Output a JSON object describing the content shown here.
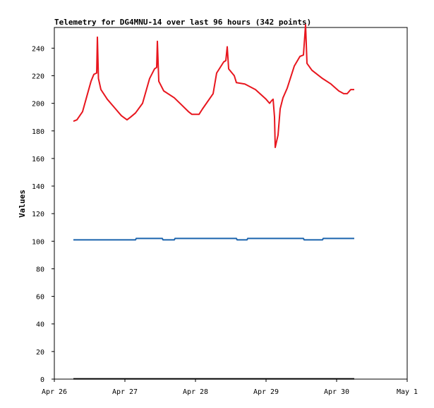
{
  "chart_data": {
    "type": "line",
    "title": "Telemetry for DG4MNU-14 over last 96 hours (342 points)",
    "xlabel": "",
    "ylabel": "Values",
    "xlim": [
      0,
      5
    ],
    "ylim": [
      0,
      255
    ],
    "xticks": [
      {
        "x": 0,
        "label": "Apr 26"
      },
      {
        "x": 1,
        "label": "Apr 27"
      },
      {
        "x": 2,
        "label": "Apr 28"
      },
      {
        "x": 3,
        "label": "Apr 29"
      },
      {
        "x": 4,
        "label": "Apr 30"
      },
      {
        "x": 5,
        "label": "May 1"
      }
    ],
    "yticks": [
      0,
      20,
      40,
      60,
      80,
      100,
      120,
      140,
      160,
      180,
      200,
      220,
      240
    ],
    "grid": false,
    "legend": "none",
    "series": [
      {
        "color": "#e8161e",
        "points": [
          [
            0.27,
            187
          ],
          [
            0.32,
            188
          ],
          [
            0.4,
            194
          ],
          [
            0.46,
            205
          ],
          [
            0.52,
            216
          ],
          [
            0.56,
            221
          ],
          [
            0.6,
            222
          ],
          [
            0.61,
            248
          ],
          [
            0.625,
            218
          ],
          [
            0.66,
            210
          ],
          [
            0.75,
            203
          ],
          [
            0.85,
            197
          ],
          [
            0.95,
            191
          ],
          [
            1.03,
            188
          ],
          [
            1.08,
            190
          ],
          [
            1.15,
            193
          ],
          [
            1.25,
            200
          ],
          [
            1.35,
            218
          ],
          [
            1.42,
            225
          ],
          [
            1.45,
            226
          ],
          [
            1.46,
            245
          ],
          [
            1.48,
            216
          ],
          [
            1.55,
            209
          ],
          [
            1.7,
            204
          ],
          [
            1.9,
            194
          ],
          [
            1.95,
            192
          ],
          [
            2.05,
            192
          ],
          [
            2.1,
            196
          ],
          [
            2.25,
            207
          ],
          [
            2.3,
            222
          ],
          [
            2.4,
            230
          ],
          [
            2.43,
            231
          ],
          [
            2.45,
            241
          ],
          [
            2.47,
            225
          ],
          [
            2.55,
            220
          ],
          [
            2.58,
            215
          ],
          [
            2.7,
            214
          ],
          [
            2.85,
            210
          ],
          [
            3.0,
            203
          ],
          [
            3.05,
            200
          ],
          [
            3.08,
            202
          ],
          [
            3.1,
            203
          ],
          [
            3.12,
            190
          ],
          [
            3.13,
            168
          ],
          [
            3.17,
            177
          ],
          [
            3.2,
            196
          ],
          [
            3.24,
            204
          ],
          [
            3.3,
            211
          ],
          [
            3.4,
            227
          ],
          [
            3.48,
            234
          ],
          [
            3.53,
            235
          ],
          [
            3.56,
            257
          ],
          [
            3.58,
            229
          ],
          [
            3.65,
            224
          ],
          [
            3.8,
            218
          ],
          [
            3.92,
            214
          ],
          [
            4.03,
            209
          ],
          [
            4.1,
            207
          ],
          [
            4.15,
            207
          ],
          [
            4.2,
            210
          ],
          [
            4.25,
            210
          ]
        ]
      },
      {
        "color": "#1b63ad",
        "points": [
          [
            0.27,
            101
          ],
          [
            1.15,
            101
          ],
          [
            1.16,
            102
          ],
          [
            1.53,
            102
          ],
          [
            1.54,
            101
          ],
          [
            1.7,
            101
          ],
          [
            1.71,
            102
          ],
          [
            2.58,
            102
          ],
          [
            2.59,
            101
          ],
          [
            2.73,
            101
          ],
          [
            2.74,
            102
          ],
          [
            3.53,
            102
          ],
          [
            3.54,
            101
          ],
          [
            3.8,
            101
          ],
          [
            3.81,
            102
          ],
          [
            4.25,
            102
          ]
        ]
      },
      {
        "color": "#000000",
        "points": [
          [
            0.27,
            0.2
          ],
          [
            4.25,
            0.2
          ]
        ]
      }
    ]
  }
}
